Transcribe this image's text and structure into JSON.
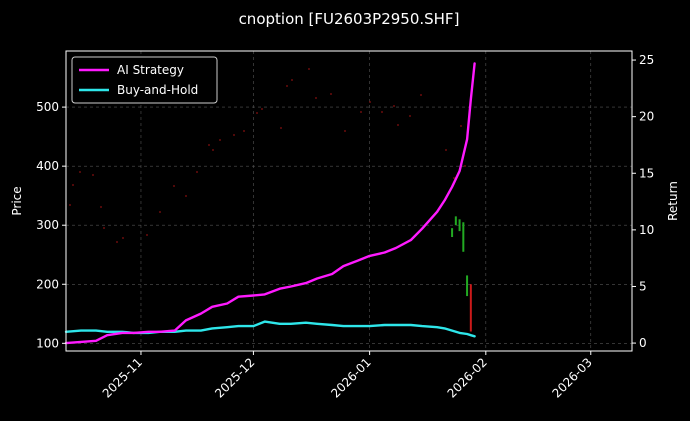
{
  "chart_data": {
    "type": "line",
    "title": "cnoption [FU2603P2950.SHF]",
    "xlabel": "",
    "ylabel": "Price",
    "y2label": "Return",
    "x_ticks": [
      "2025-11",
      "2025-12",
      "2026-01",
      "2026-02",
      "2026-03"
    ],
    "y_ticks": [
      "100",
      "200",
      "300",
      "400",
      "500"
    ],
    "y2_ticks": [
      "0",
      "5",
      "10",
      "15",
      "20",
      "25"
    ],
    "xlim": [
      "2025-10-12",
      "2026-03-12"
    ],
    "ylim": [
      87,
      595
    ],
    "y2lim": [
      -0.7,
      25.8
    ],
    "grid": true,
    "legend_position": "top-left",
    "colors": {
      "background": "#000000",
      "ai_strategy": "#ff1aff",
      "buy_and_hold": "#2ee6ea",
      "candle_up": "#22aa22",
      "candle_down": "#cc1a1a",
      "grid": "#555555"
    },
    "series": [
      {
        "name": "AI Strategy",
        "axis": "right",
        "x": [
          "2025-10-12",
          "2025-10-16",
          "2025-10-20",
          "2025-10-23",
          "2025-10-27",
          "2025-10-30",
          "2025-11-03",
          "2025-11-06",
          "2025-11-10",
          "2025-11-13",
          "2025-11-17",
          "2025-11-20",
          "2025-11-24",
          "2025-11-27",
          "2025-12-01",
          "2025-12-04",
          "2025-12-08",
          "2025-12-11",
          "2025-12-15",
          "2025-12-18",
          "2025-12-22",
          "2025-12-25",
          "2025-12-29",
          "2026-01-01",
          "2026-01-05",
          "2026-01-08",
          "2026-01-12",
          "2026-01-15",
          "2026-01-19",
          "2026-01-21",
          "2026-01-23",
          "2026-01-25",
          "2026-01-27",
          "2026-01-28",
          "2026-01-29"
        ],
        "values": [
          0,
          0.1,
          0.2,
          0.7,
          0.9,
          0.9,
          1.0,
          1.0,
          1.1,
          2.0,
          2.6,
          3.2,
          3.5,
          4.1,
          4.2,
          4.3,
          4.8,
          5.0,
          5.3,
          5.7,
          6.1,
          6.8,
          7.3,
          7.7,
          8.0,
          8.4,
          9.1,
          10.1,
          11.6,
          12.6,
          13.8,
          15.2,
          18.0,
          21.5,
          24.7
        ]
      },
      {
        "name": "Buy-and-Hold",
        "axis": "right",
        "x": [
          "2025-10-12",
          "2025-10-16",
          "2025-10-20",
          "2025-10-23",
          "2025-10-27",
          "2025-10-30",
          "2025-11-03",
          "2025-11-06",
          "2025-11-10",
          "2025-11-13",
          "2025-11-17",
          "2025-11-20",
          "2025-11-24",
          "2025-11-27",
          "2025-12-01",
          "2025-12-04",
          "2025-12-08",
          "2025-12-11",
          "2025-12-15",
          "2025-12-18",
          "2025-12-22",
          "2025-12-25",
          "2025-12-29",
          "2026-01-01",
          "2026-01-05",
          "2026-01-08",
          "2026-01-12",
          "2026-01-15",
          "2026-01-19",
          "2026-01-21",
          "2026-01-23",
          "2026-01-25",
          "2026-01-27",
          "2026-01-28",
          "2026-01-29"
        ],
        "values": [
          1.0,
          1.1,
          1.1,
          1.0,
          1.0,
          0.9,
          0.9,
          1.0,
          1.0,
          1.1,
          1.1,
          1.3,
          1.4,
          1.5,
          1.5,
          1.9,
          1.7,
          1.7,
          1.8,
          1.7,
          1.6,
          1.5,
          1.5,
          1.5,
          1.6,
          1.6,
          1.6,
          1.5,
          1.4,
          1.3,
          1.1,
          0.9,
          0.8,
          0.7,
          0.6
        ]
      }
    ],
    "price_candles": [
      {
        "x": "2026-01-23",
        "open": 295,
        "close": 280,
        "direction": "up"
      },
      {
        "x": "2026-01-24",
        "open": 315,
        "close": 300,
        "direction": "up"
      },
      {
        "x": "2026-01-25",
        "open": 310,
        "close": 290,
        "direction": "up"
      },
      {
        "x": "2026-01-26",
        "open": 305,
        "close": 255,
        "direction": "up"
      },
      {
        "x": "2026-01-27",
        "open": 215,
        "close": 180,
        "direction": "up"
      },
      {
        "x": "2026-01-28",
        "open": 200,
        "close": 120,
        "direction": "down"
      }
    ]
  }
}
